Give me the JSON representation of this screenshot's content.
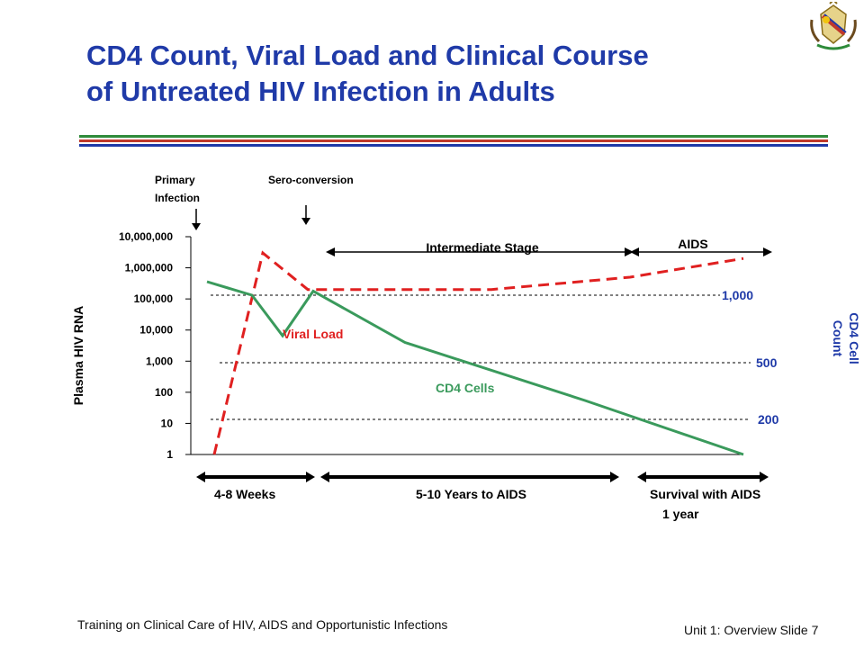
{
  "slide": {
    "title_line1": "CD4 Count, Viral Load and Clinical Course",
    "title_line2": "of Untreated HIV Infection in Adults",
    "footer_left": "Training on Clinical Care of HIV, AIDS and Opportunistic Infections",
    "footer_right": "Unit 1: Overview Slide 7",
    "stripe_colors": [
      "#2e8b3a",
      "#c0392b",
      "#1f3aa8"
    ],
    "logo_icon": "coat-of-arms-icon"
  },
  "chart_data": {
    "type": "line",
    "title": "",
    "ylabel": "Plasma HIV RNA",
    "y2label_line1": "CD4 Cell",
    "y2label_line2": "Count",
    "yscale": "log",
    "ylim": [
      1,
      10000000
    ],
    "yticks": [
      "10,000,000",
      "1,000,000",
      "100,000",
      "10,000",
      "1,000",
      "100",
      "10",
      "1"
    ],
    "y2_reference_lines": [
      "1,000",
      "500",
      "200"
    ],
    "series": [
      {
        "name": "Viral Load",
        "color": "#e02020",
        "style": "dashed",
        "x": [
          0,
          1,
          2,
          3,
          4,
          5,
          6
        ],
        "y": [
          1,
          3000000,
          200000,
          200000,
          200000,
          500000,
          2000000
        ]
      },
      {
        "name": "CD4 Cells",
        "color": "#3a9a5c",
        "style": "solid",
        "x": [
          0,
          1,
          2,
          3,
          4,
          5,
          6
        ],
        "y": [
          1100,
          1000,
          700,
          1030,
          650,
          300,
          0
        ]
      }
    ],
    "annotations": {
      "primary_infection": "Primary\nInfection",
      "sero_conversion": "Sero-conversion",
      "intermediate_stage": "Intermediate Stage",
      "aids": "AIDS"
    },
    "timeline": [
      "4-8 Weeks",
      "5-10 Years to AIDS",
      "Survival with AIDS\n1 year"
    ],
    "colors": {
      "axis": "#000000",
      "cd4_axis": "#1f3aa8",
      "viral": "#e02020",
      "cd4": "#3a9a5c"
    }
  }
}
